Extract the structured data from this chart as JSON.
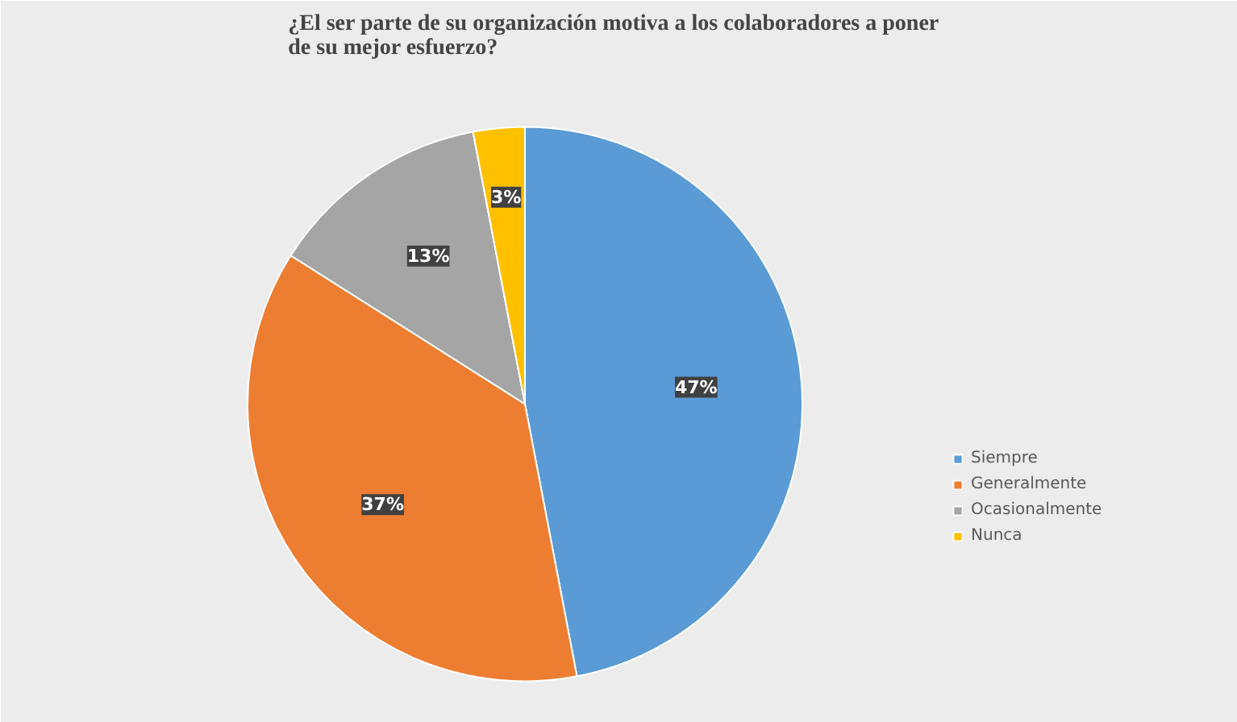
{
  "chart_data": {
    "type": "pie",
    "title": "¿El ser parte de su organización  motiva a los colaboradores  a poner\nde su mejor  esfuerzo?",
    "categories": [
      "Siempre",
      "Generalmente",
      "Ocasionalmente",
      "Nunca"
    ],
    "values": [
      47,
      37,
      13,
      3
    ],
    "colors": [
      "#5b9bd5",
      "#ed7d31",
      "#a5a5a5",
      "#ffc000"
    ],
    "value_labels": [
      "47%",
      "37%",
      "13%",
      "3%"
    ],
    "legend": "right"
  }
}
